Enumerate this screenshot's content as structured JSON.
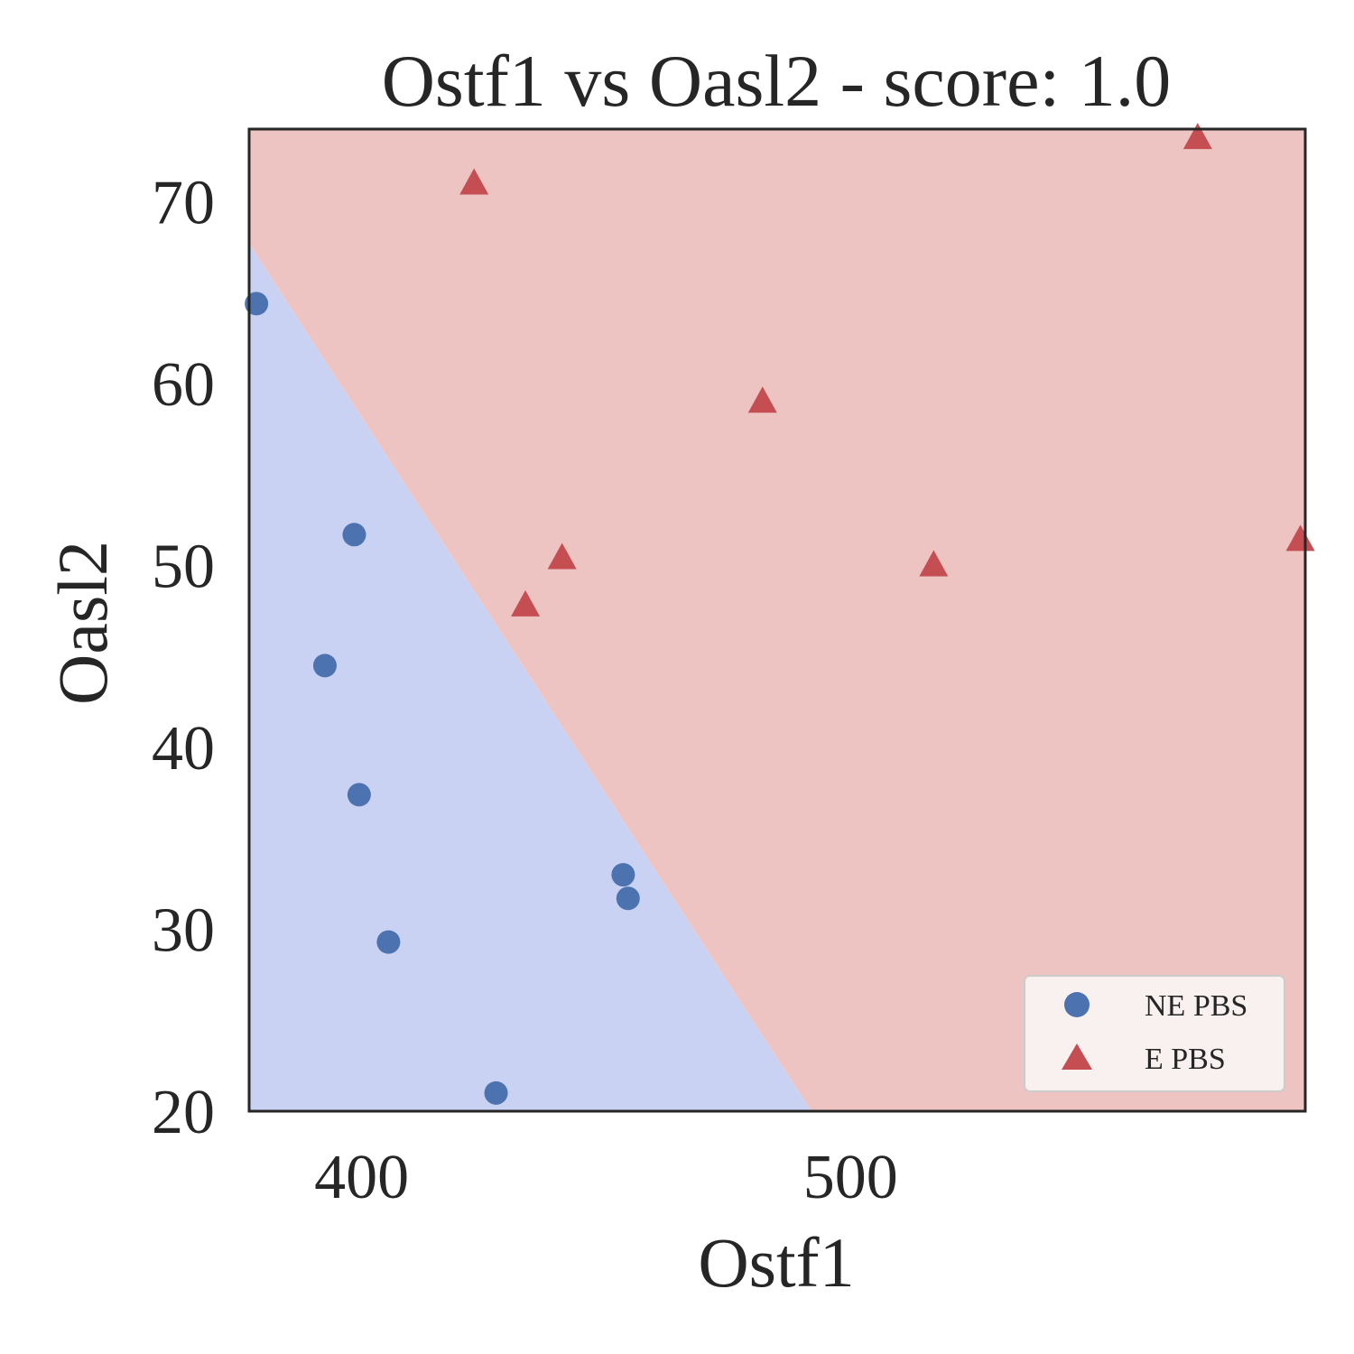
{
  "chart_data": {
    "type": "scatter",
    "title": "Ostf1 vs Oasl2 - score: 1.0",
    "xlabel": "Ostf1",
    "ylabel": "Oasl2",
    "xlim": [
      377,
      593
    ],
    "ylim": [
      20,
      74
    ],
    "xticks": [
      400,
      500
    ],
    "yticks": [
      20,
      30,
      40,
      50,
      60,
      70
    ],
    "grid": false,
    "legend_position": "lower-right",
    "decision_boundary": {
      "points": [
        [
          377,
          67.7
        ],
        [
          492,
          20
        ]
      ],
      "regions": [
        {
          "class": "NE PBS",
          "side": "lower-left",
          "color": "#c9d2f2"
        },
        {
          "class": "E PBS",
          "side": "upper-right",
          "color": "#eec4c3"
        }
      ]
    },
    "series": [
      {
        "name": "NE PBS",
        "marker": "circle",
        "color": "#4c72b0",
        "points": [
          [
            378.5,
            64.4
          ],
          [
            398.5,
            51.7
          ],
          [
            392.5,
            44.5
          ],
          [
            399.5,
            37.4
          ],
          [
            405.5,
            29.3
          ],
          [
            453.5,
            33.0
          ],
          [
            454.5,
            31.7
          ],
          [
            427.5,
            21.0
          ]
        ]
      },
      {
        "name": "E PBS",
        "marker": "triangle",
        "color": "#c44e52",
        "points": [
          [
            423,
            71.0
          ],
          [
            433.5,
            47.8
          ],
          [
            441,
            50.4
          ],
          [
            482,
            59.0
          ],
          [
            517,
            50.0
          ],
          [
            571,
            73.5
          ],
          [
            592,
            51.4
          ]
        ]
      }
    ]
  }
}
